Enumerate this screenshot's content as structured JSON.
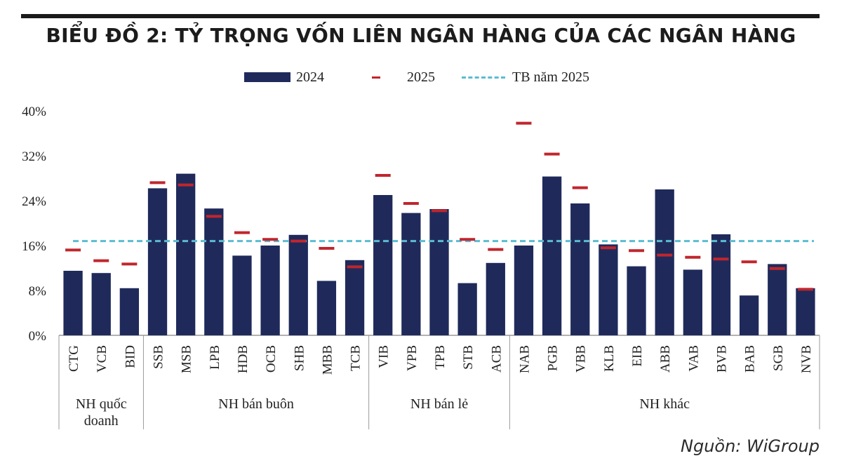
{
  "title": "BIỂU ĐỒ 2: TỶ TRỌNG VỐN LIÊN NGÂN HÀNG CỦA CÁC NGÂN HÀNG",
  "source": "Nguồn: WiGroup",
  "legend": {
    "bar": "2024",
    "dash": "2025",
    "avg": "TB năm 2025"
  },
  "colors": {
    "bar": "#1f2a5b",
    "dash": "#c0262d",
    "avg": "#5bbcd0"
  },
  "chart_data": {
    "type": "bar",
    "y_ticks": [
      "0%",
      "8%",
      "16%",
      "24%",
      "32%",
      "40%"
    ],
    "ylim": [
      0,
      40
    ],
    "categories": [
      "CTG",
      "VCB",
      "BID",
      "SSB",
      "MSB",
      "LPB",
      "HDB",
      "OCB",
      "SHB",
      "MBB",
      "TCB",
      "VIB",
      "VPB",
      "TPB",
      "STB",
      "ACB",
      "NAB",
      "PGB",
      "VBB",
      "KLB",
      "EIB",
      "ABB",
      "VAB",
      "BVB",
      "BAB",
      "SGB",
      "NVB"
    ],
    "series": [
      {
        "name": "2024",
        "values": [
          11.5,
          11.1,
          8.4,
          26.2,
          28.8,
          22.6,
          14.2,
          16.0,
          17.9,
          9.7,
          13.4,
          25.0,
          21.8,
          22.5,
          9.3,
          12.9,
          16.0,
          28.3,
          23.5,
          16.2,
          12.3,
          26.0,
          11.7,
          18.0,
          7.1,
          12.7,
          8.4
        ]
      },
      {
        "name": "2025",
        "values": [
          15.2,
          13.3,
          12.7,
          27.2,
          26.8,
          21.2,
          18.3,
          17.1,
          16.8,
          15.5,
          12.2,
          28.5,
          23.5,
          22.2,
          17.1,
          15.3,
          37.8,
          32.3,
          26.3,
          15.6,
          15.1,
          14.3,
          13.9,
          13.6,
          13.1,
          11.9,
          8.2
        ]
      }
    ],
    "average_2025": 16.8,
    "groups": [
      {
        "label": "NH quốc\ndoanh",
        "start": 0,
        "end": 2
      },
      {
        "label": "NH bán buôn",
        "start": 3,
        "end": 10
      },
      {
        "label": "NH bán lẻ",
        "start": 11,
        "end": 15
      },
      {
        "label": "NH khác",
        "start": 16,
        "end": 26
      }
    ]
  }
}
